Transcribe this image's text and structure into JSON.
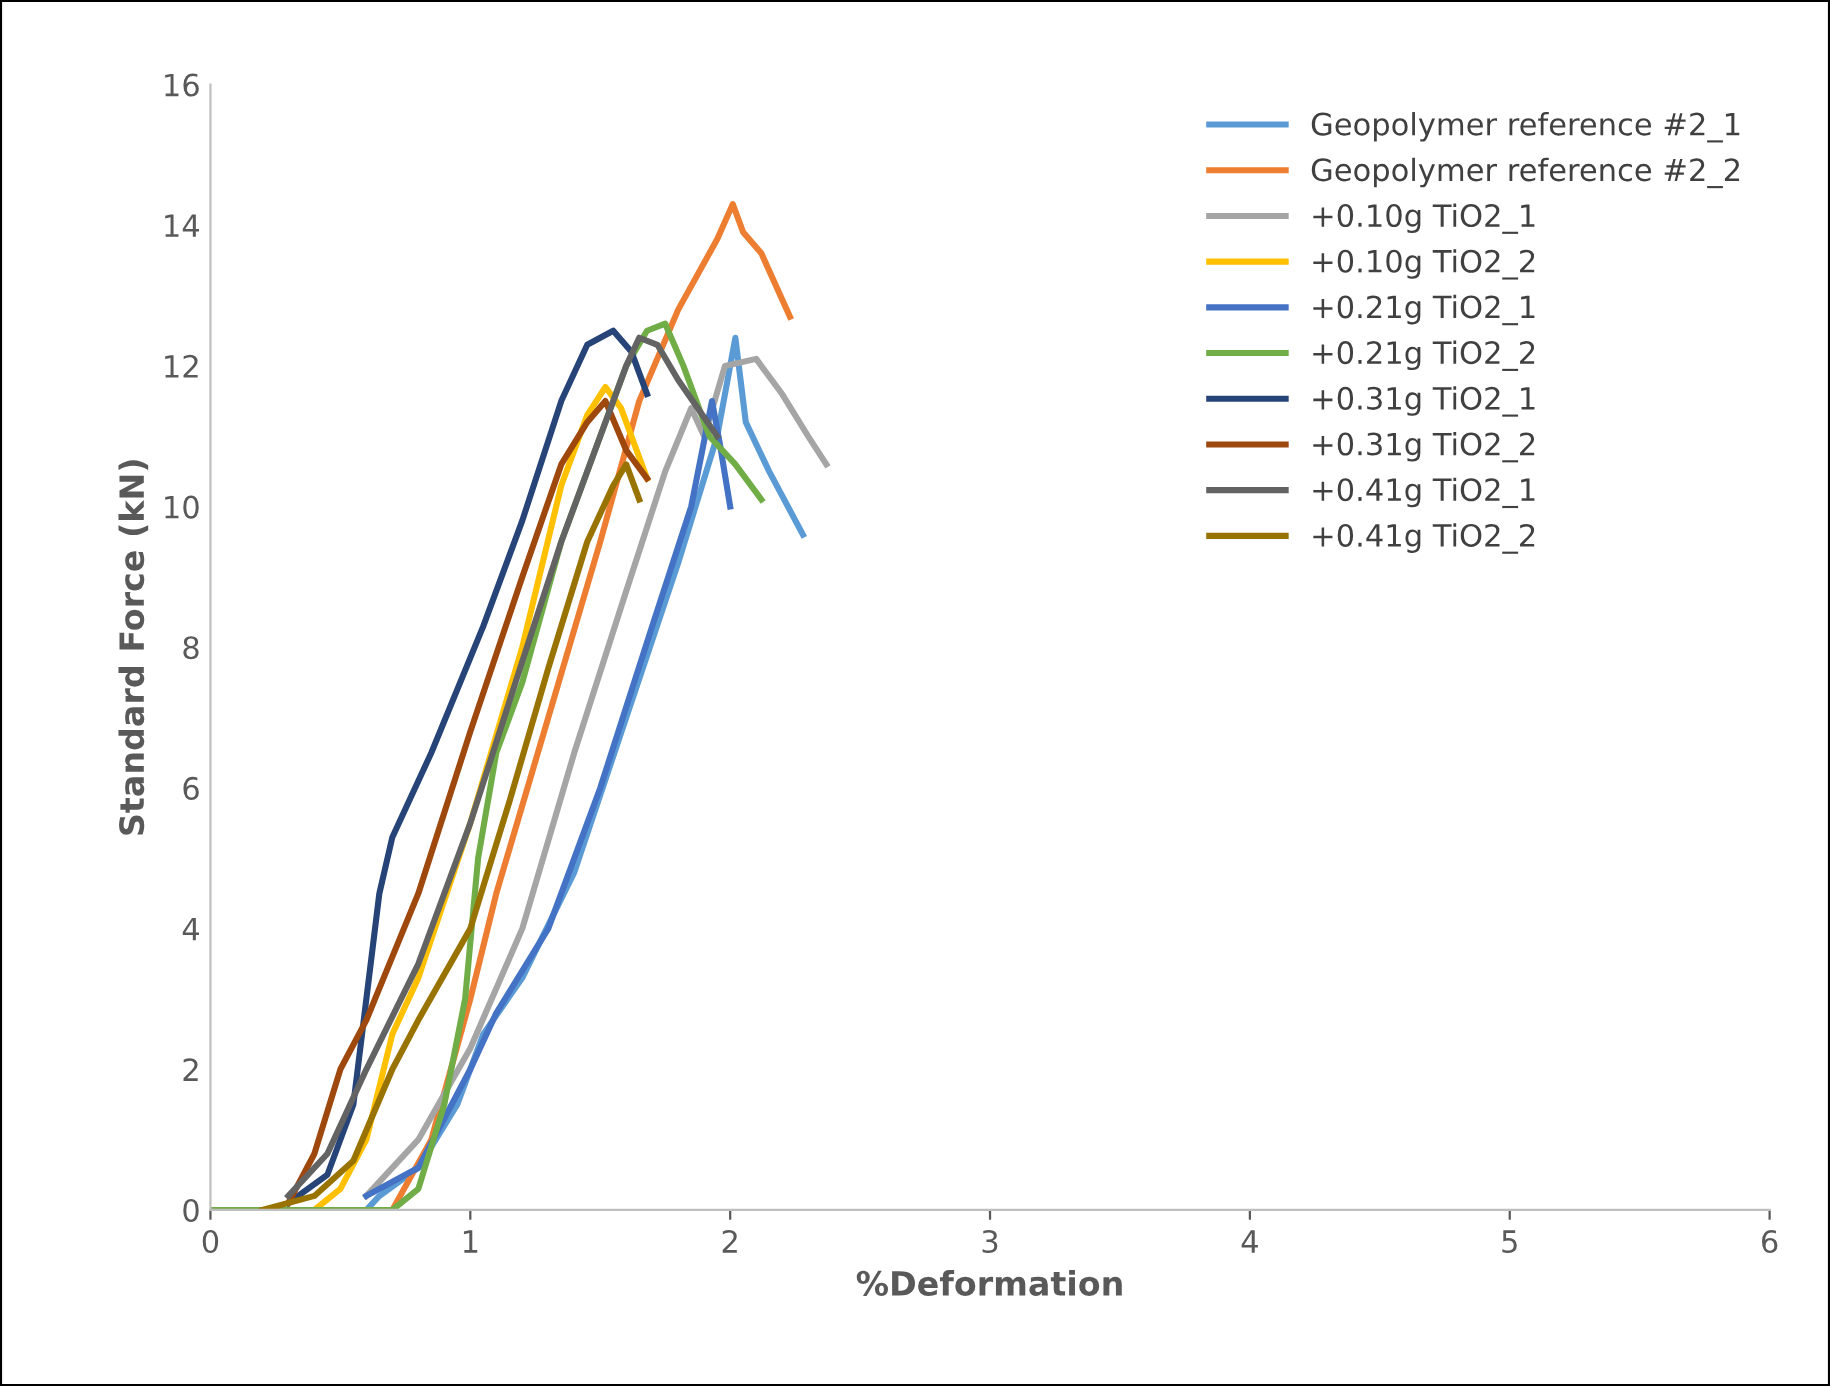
{
  "chart_data": {
    "type": "line",
    "xlabel": "%Deformation",
    "ylabel": "Standard Force (kN)",
    "xlim": [
      0,
      6
    ],
    "xticks": [
      0,
      1,
      2,
      3,
      4,
      5,
      6
    ],
    "ylim": [
      0,
      16
    ],
    "yticks": [
      0,
      2,
      4,
      6,
      8,
      10,
      12,
      14,
      16
    ],
    "grid": false,
    "legend": "top right",
    "marker": "none",
    "line_style": "solid",
    "series": [
      {
        "name": "Geopolymer reference #2_1",
        "color": "#5b9bd5",
        "x": [
          0,
          0.6,
          0.65,
          0.8,
          0.95,
          1.05,
          1.2,
          1.4,
          1.6,
          1.8,
          1.95,
          2.02,
          2.06,
          2.15,
          2.28
        ],
        "values": [
          0,
          0,
          0.2,
          0.6,
          1.5,
          2.5,
          3.3,
          4.8,
          7,
          9.2,
          11,
          12.4,
          11.2,
          10.5,
          9.6
        ]
      },
      {
        "name": "Geopolymer reference #2_2",
        "color": "#ed7d31",
        "x": [
          0,
          0.7,
          0.85,
          1.0,
          1.1,
          1.3,
          1.5,
          1.65,
          1.8,
          1.95,
          2.01,
          2.05,
          2.12,
          2.23
        ],
        "values": [
          0,
          0,
          1,
          3,
          4.5,
          7,
          9.5,
          11.5,
          12.8,
          13.8,
          14.3,
          13.9,
          13.6,
          12.7
        ]
      },
      {
        "name": "+0.10g TiO2_1",
        "color": "#a5a5a5",
        "x": [
          0.6,
          0.8,
          1.0,
          1.2,
          1.4,
          1.6,
          1.75,
          1.85,
          1.9,
          1.98,
          2.1,
          2.2,
          2.3,
          2.37
        ],
        "values": [
          0.2,
          1,
          2.3,
          4,
          6.5,
          8.8,
          10.5,
          11.4,
          11,
          12,
          12.1,
          11.6,
          11,
          10.6
        ]
      },
      {
        "name": "+0.10g TiO2_2",
        "color": "#ffc000",
        "x": [
          0.4,
          0.5,
          0.6,
          0.7,
          0.8,
          1.0,
          1.2,
          1.35,
          1.45,
          1.52,
          1.58,
          1.68
        ],
        "values": [
          0,
          0.3,
          1,
          2.5,
          3.3,
          5.5,
          8,
          10.3,
          11.3,
          11.7,
          11.4,
          10.4
        ]
      },
      {
        "name": "+0.21g TiO2_1",
        "color": "#4472c4",
        "x": [
          0.6,
          0.8,
          1.0,
          1.1,
          1.3,
          1.5,
          1.7,
          1.85,
          1.93,
          1.96,
          2.0
        ],
        "values": [
          0.2,
          0.6,
          2,
          2.8,
          4,
          6,
          8.3,
          10,
          11.5,
          10.9,
          10
        ]
      },
      {
        "name": "+0.21g TiO2_2",
        "color": "#70ad47",
        "x": [
          0,
          0.7,
          0.8,
          0.9,
          0.98,
          1.03,
          1.1,
          1.2,
          1.35,
          1.5,
          1.6,
          1.68,
          1.75,
          1.82,
          1.92,
          2.02,
          2.12
        ],
        "values": [
          0,
          0,
          0.3,
          1.5,
          3,
          5,
          6.5,
          7.5,
          9.5,
          11,
          12,
          12.5,
          12.6,
          12,
          11,
          10.6,
          10.1
        ]
      },
      {
        "name": "+0.31g TiO2_1",
        "color": "#264478",
        "x": [
          0.3,
          0.45,
          0.55,
          0.6,
          0.65,
          0.7,
          0.85,
          1.05,
          1.2,
          1.35,
          1.45,
          1.55,
          1.62,
          1.68
        ],
        "values": [
          0.1,
          0.5,
          1.5,
          3,
          4.5,
          5.3,
          6.5,
          8.3,
          9.8,
          11.5,
          12.3,
          12.5,
          12.2,
          11.6
        ]
      },
      {
        "name": "+0.31g TiO2_2",
        "color": "#9e480e",
        "x": [
          0.3,
          0.4,
          0.5,
          0.6,
          0.8,
          1.0,
          1.2,
          1.35,
          1.45,
          1.52,
          1.6,
          1.68
        ],
        "values": [
          0.1,
          0.8,
          2,
          2.7,
          4.5,
          6.8,
          9,
          10.6,
          11.2,
          11.5,
          10.8,
          10.4
        ]
      },
      {
        "name": "+0.41g TiO2_1",
        "color": "#636363",
        "x": [
          0.3,
          0.45,
          0.6,
          0.8,
          1.0,
          1.2,
          1.35,
          1.5,
          1.6,
          1.65,
          1.72,
          1.8,
          1.95
        ],
        "values": [
          0.2,
          0.8,
          2,
          3.5,
          5.5,
          7.8,
          9.5,
          11,
          12,
          12.4,
          12.3,
          11.8,
          11
        ]
      },
      {
        "name": "+0.41g TiO2_2",
        "color": "#997300",
        "x": [
          0.2,
          0.4,
          0.55,
          0.7,
          0.8,
          1.0,
          1.15,
          1.3,
          1.45,
          1.55,
          1.6,
          1.65
        ],
        "values": [
          0,
          0.2,
          0.7,
          2,
          2.7,
          4,
          5.8,
          7.7,
          9.5,
          10.3,
          10.6,
          10.1
        ]
      }
    ]
  }
}
